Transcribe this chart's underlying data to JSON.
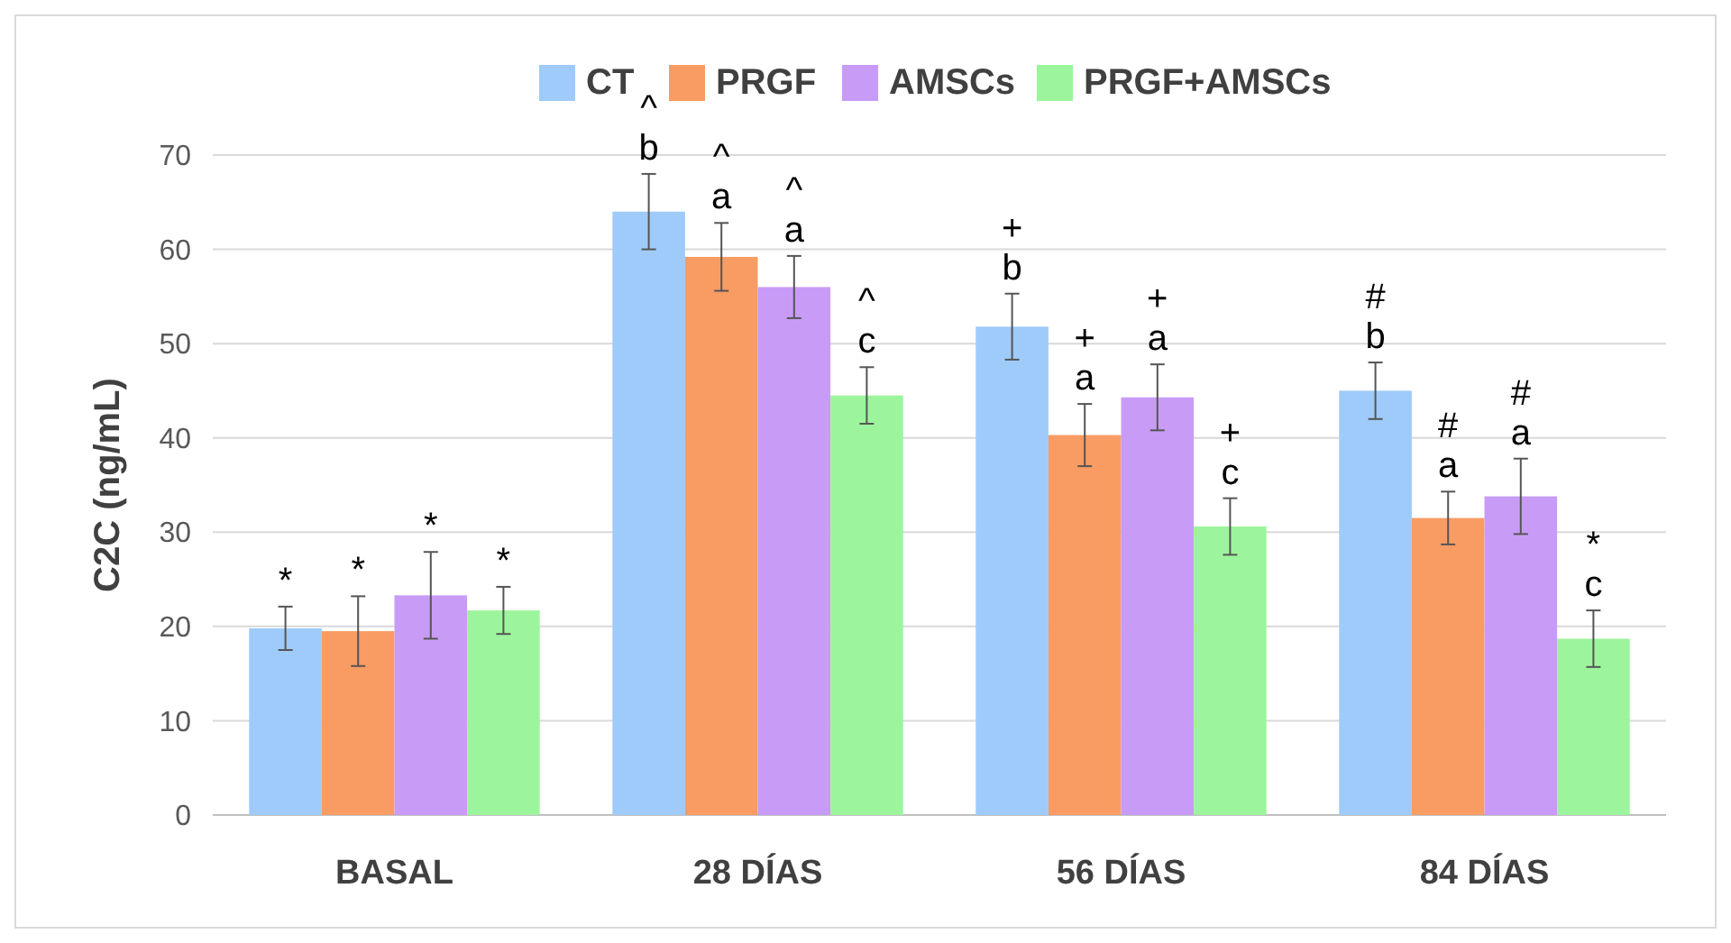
{
  "chart_data": {
    "type": "bar",
    "ylabel": "C2C (ng/mL)",
    "categories": [
      "BASAL",
      "28 DÍAS",
      "56 DÍAS",
      "84 DÍAS"
    ],
    "series": [
      {
        "name": "CT",
        "color": "#9ecbfa",
        "values": [
          19.8,
          64,
          51.8,
          45
        ],
        "errors": [
          2.3,
          4,
          3.5,
          3
        ]
      },
      {
        "name": "PRGF",
        "color": "#f89c64",
        "values": [
          19.5,
          59.2,
          40.3,
          31.5
        ],
        "errors": [
          3.7,
          3.6,
          3.3,
          2.8
        ]
      },
      {
        "name": "AMSCs",
        "color": "#c89cf6",
        "values": [
          23.3,
          56,
          44.3,
          33.8
        ],
        "errors": [
          4.6,
          3.3,
          3.5,
          4
        ]
      },
      {
        "name": "PRGF+AMSCs",
        "color": "#9cf59c",
        "values": [
          21.7,
          44.5,
          30.6,
          18.7
        ],
        "errors": [
          2.5,
          3,
          3,
          3
        ]
      }
    ],
    "annotations": [
      "*",
      "*",
      "*",
      "*",
      "^ b",
      "^ a",
      "^ a",
      "^ c",
      "+ b",
      "+ a",
      "+ a",
      "+ c",
      "# b",
      "# a",
      "# a",
      "* c"
    ],
    "ylim": [
      0,
      70
    ],
    "yticks": [
      0,
      10,
      20,
      30,
      40,
      50,
      60,
      70
    ],
    "grid": "y",
    "legend": "top"
  }
}
